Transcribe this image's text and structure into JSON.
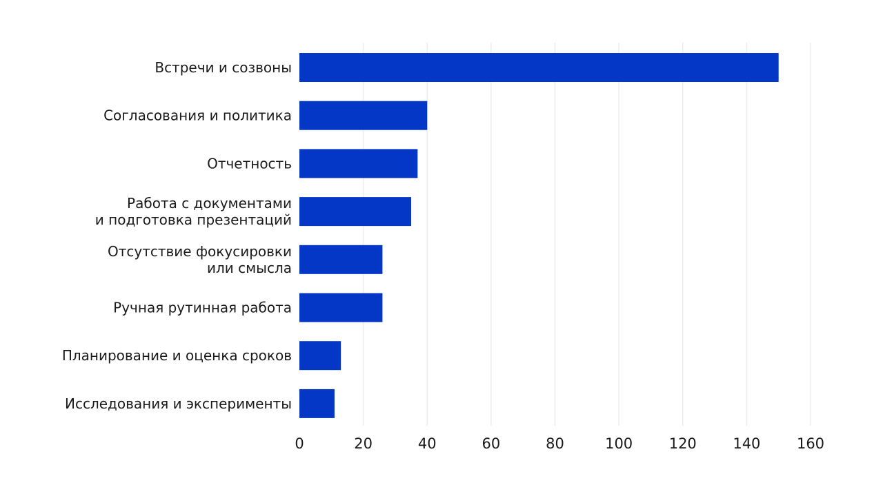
{
  "chart_data": {
    "type": "bar",
    "orientation": "horizontal",
    "categories": [
      [
        "Встречи и созвоны"
      ],
      [
        "Согласования и политика"
      ],
      [
        "Отчетность"
      ],
      [
        "Работа с документами",
        "и подготовка презентаций"
      ],
      [
        "Отсутствие фокусировки",
        "или смысла"
      ],
      [
        "Ручная рутинная работа"
      ],
      [
        "Планирование и оценка сроков"
      ],
      [
        "Исследования и эксперименты"
      ]
    ],
    "values": [
      150,
      40,
      37,
      35,
      26,
      26,
      13,
      11
    ],
    "xlim": [
      0,
      160
    ],
    "xticks": [
      0,
      20,
      40,
      60,
      80,
      100,
      120,
      140,
      160
    ],
    "bar_color": "#0437c6",
    "grid": true,
    "grid_color": "#eeeeee",
    "title": "",
    "xlabel": "",
    "ylabel": ""
  }
}
